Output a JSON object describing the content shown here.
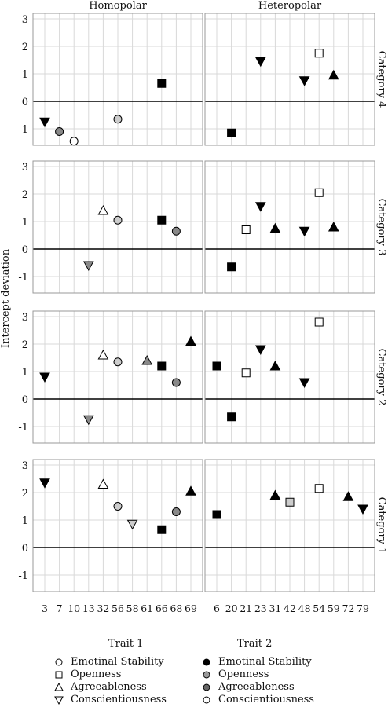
{
  "chart_data": {
    "type": "scatter",
    "ylabel": "Intercept deviation",
    "columns": [
      "Homopolar",
      "Heteropolar"
    ],
    "rows": [
      "Category 4",
      "Category 3",
      "Category 2",
      "Category 1"
    ],
    "y_ticks": [
      3,
      2,
      1,
      0,
      -1
    ],
    "ylim": [
      -1.6,
      3.2
    ],
    "grid": true,
    "x_ticks": {
      "Homopolar": [
        "3",
        "7",
        "10",
        "13",
        "32",
        "56",
        "58",
        "61",
        "66",
        "68",
        "69"
      ],
      "Heteropolar": [
        "6",
        "20",
        "21",
        "23",
        "31",
        "42",
        "48",
        "54",
        "59",
        "72",
        "79"
      ]
    },
    "points": {
      "Homopolar": {
        "Category 4": [
          {
            "x": "3",
            "y": -0.75,
            "marker": "down",
            "fill": "#000000"
          },
          {
            "x": "7",
            "y": -1.1,
            "marker": "circle",
            "fill": "#888888"
          },
          {
            "x": "10",
            "y": -1.45,
            "marker": "circle",
            "fill": "#ffffff"
          },
          {
            "x": "56",
            "y": -0.65,
            "marker": "circle",
            "fill": "#cccccc"
          },
          {
            "x": "66",
            "y": 0.65,
            "marker": "square",
            "fill": "#000000"
          }
        ],
        "Category 3": [
          {
            "x": "13",
            "y": -0.6,
            "marker": "down",
            "fill": "#888888"
          },
          {
            "x": "32",
            "y": 1.4,
            "marker": "up",
            "fill": "#ffffff"
          },
          {
            "x": "56",
            "y": 1.05,
            "marker": "circle",
            "fill": "#cccccc"
          },
          {
            "x": "66",
            "y": 1.05,
            "marker": "square",
            "fill": "#000000"
          },
          {
            "x": "68",
            "y": 0.65,
            "marker": "circle",
            "fill": "#888888"
          }
        ],
        "Category 2": [
          {
            "x": "3",
            "y": 0.8,
            "marker": "down",
            "fill": "#000000"
          },
          {
            "x": "13",
            "y": -0.75,
            "marker": "down",
            "fill": "#888888"
          },
          {
            "x": "32",
            "y": 1.6,
            "marker": "up",
            "fill": "#ffffff"
          },
          {
            "x": "56",
            "y": 1.35,
            "marker": "circle",
            "fill": "#cccccc"
          },
          {
            "x": "61",
            "y": 1.4,
            "marker": "up",
            "fill": "#888888"
          },
          {
            "x": "66",
            "y": 1.2,
            "marker": "square",
            "fill": "#000000"
          },
          {
            "x": "68",
            "y": 0.6,
            "marker": "circle",
            "fill": "#888888"
          },
          {
            "x": "69",
            "y": 2.1,
            "marker": "up",
            "fill": "#000000"
          }
        ],
        "Category 1": [
          {
            "x": "3",
            "y": 2.35,
            "marker": "down",
            "fill": "#000000"
          },
          {
            "x": "32",
            "y": 2.3,
            "marker": "up",
            "fill": "#ffffff"
          },
          {
            "x": "56",
            "y": 1.5,
            "marker": "circle",
            "fill": "#cccccc"
          },
          {
            "x": "58",
            "y": 0.85,
            "marker": "down",
            "fill": "#cccccc"
          },
          {
            "x": "66",
            "y": 0.65,
            "marker": "square",
            "fill": "#000000"
          },
          {
            "x": "68",
            "y": 1.3,
            "marker": "circle",
            "fill": "#888888"
          },
          {
            "x": "69",
            "y": 2.05,
            "marker": "up",
            "fill": "#000000"
          }
        ]
      },
      "Heteropolar": {
        "Category 4": [
          {
            "x": "20",
            "y": -1.15,
            "marker": "square",
            "fill": "#000000"
          },
          {
            "x": "23",
            "y": 1.45,
            "marker": "down",
            "fill": "#000000"
          },
          {
            "x": "48",
            "y": 0.75,
            "marker": "down",
            "fill": "#000000"
          },
          {
            "x": "54",
            "y": 1.75,
            "marker": "square",
            "fill": "#ffffff"
          },
          {
            "x": "59",
            "y": 0.95,
            "marker": "up",
            "fill": "#000000"
          }
        ],
        "Category 3": [
          {
            "x": "20",
            "y": -0.65,
            "marker": "square",
            "fill": "#000000"
          },
          {
            "x": "21",
            "y": 0.7,
            "marker": "square",
            "fill": "#ffffff"
          },
          {
            "x": "23",
            "y": 1.55,
            "marker": "down",
            "fill": "#000000"
          },
          {
            "x": "31",
            "y": 0.75,
            "marker": "up",
            "fill": "#000000"
          },
          {
            "x": "48",
            "y": 0.65,
            "marker": "down",
            "fill": "#000000"
          },
          {
            "x": "54",
            "y": 2.05,
            "marker": "square",
            "fill": "#ffffff"
          },
          {
            "x": "59",
            "y": 0.8,
            "marker": "up",
            "fill": "#000000"
          }
        ],
        "Category 2": [
          {
            "x": "6",
            "y": 1.2,
            "marker": "square",
            "fill": "#000000"
          },
          {
            "x": "20",
            "y": -0.65,
            "marker": "square",
            "fill": "#000000"
          },
          {
            "x": "21",
            "y": 0.95,
            "marker": "square",
            "fill": "#ffffff"
          },
          {
            "x": "23",
            "y": 1.8,
            "marker": "down",
            "fill": "#000000"
          },
          {
            "x": "31",
            "y": 1.2,
            "marker": "up",
            "fill": "#000000"
          },
          {
            "x": "48",
            "y": 0.6,
            "marker": "down",
            "fill": "#000000"
          },
          {
            "x": "54",
            "y": 2.8,
            "marker": "square",
            "fill": "#ffffff"
          }
        ],
        "Category 1": [
          {
            "x": "6",
            "y": 1.2,
            "marker": "square",
            "fill": "#000000"
          },
          {
            "x": "31",
            "y": 1.9,
            "marker": "up",
            "fill": "#000000"
          },
          {
            "x": "42",
            "y": 1.65,
            "marker": "square",
            "fill": "#cccccc"
          },
          {
            "x": "54",
            "y": 2.15,
            "marker": "square",
            "fill": "#ffffff"
          },
          {
            "x": "72",
            "y": 1.85,
            "marker": "up",
            "fill": "#000000"
          },
          {
            "x": "79",
            "y": 1.4,
            "marker": "down",
            "fill": "#000000"
          }
        ]
      }
    },
    "legend": {
      "trait1_title": "Trait 1",
      "trait2_title": "Trait 2",
      "trait1": [
        {
          "label": "Emotinal Stability",
          "marker": "circle",
          "fill": "#ffffff"
        },
        {
          "label": "Openness",
          "marker": "square",
          "fill": "#ffffff"
        },
        {
          "label": "Agreeableness",
          "marker": "up",
          "fill": "#ffffff"
        },
        {
          "label": "Conscientiousness",
          "marker": "down",
          "fill": "#ffffff"
        }
      ],
      "trait2": [
        {
          "label": "Emotinal Stability",
          "marker": "circle",
          "fill": "#000000"
        },
        {
          "label": "Openness",
          "marker": "circle",
          "fill": "#999999"
        },
        {
          "label": "Agreeableness",
          "marker": "circle",
          "fill": "#666666"
        },
        {
          "label": "Conscientiousness",
          "marker": "circle",
          "fill": "#ffffff"
        }
      ]
    }
  }
}
